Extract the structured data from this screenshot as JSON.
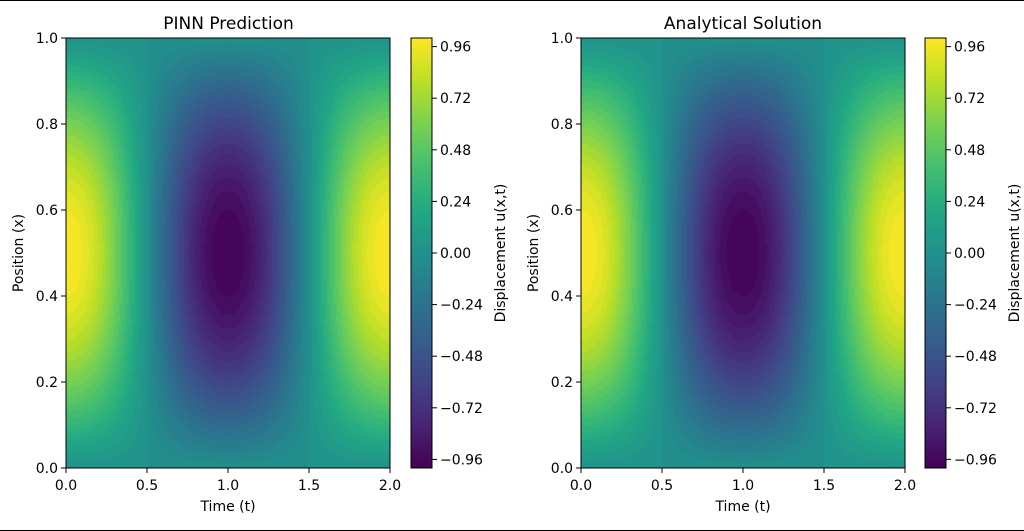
{
  "chart_data": [
    {
      "type": "heatmap",
      "title": "PINN Prediction",
      "xlabel": "Time (t)",
      "ylabel": "Position (x)",
      "xlim": [
        0.0,
        2.0
      ],
      "ylim": [
        0.0,
        1.0
      ],
      "xticks": [
        "0.0",
        "0.5",
        "1.0",
        "1.5",
        "2.0"
      ],
      "yticks": [
        "0.0",
        "0.2",
        "0.4",
        "0.6",
        "0.8",
        "1.0"
      ],
      "colormap": "viridis",
      "function": "u(x,t) = sin(pi*x) * cos(pi*t)",
      "value_range": [
        -1.0,
        1.0
      ],
      "colorbar": {
        "label": "Displacement u(x,t)",
        "ticks": [
          "−0.96",
          "−0.72",
          "−0.48",
          "−0.24",
          "0.00",
          "0.24",
          "0.48",
          "0.72",
          "0.96"
        ],
        "tick_values": [
          -0.96,
          -0.72,
          -0.48,
          -0.24,
          0.0,
          0.24,
          0.48,
          0.72,
          0.96
        ],
        "range": [
          -1.0,
          1.0
        ]
      }
    },
    {
      "type": "heatmap",
      "title": "Analytical Solution",
      "xlabel": "Time (t)",
      "ylabel": "Position (x)",
      "xlim": [
        0.0,
        2.0
      ],
      "ylim": [
        0.0,
        1.0
      ],
      "xticks": [
        "0.0",
        "0.5",
        "1.0",
        "1.5",
        "2.0"
      ],
      "yticks": [
        "0.0",
        "0.2",
        "0.4",
        "0.6",
        "0.8",
        "1.0"
      ],
      "colormap": "viridis",
      "function": "u(x,t) = sin(pi*x) * cos(pi*t)",
      "value_range": [
        -1.0,
        1.0
      ],
      "colorbar": {
        "label": "Displacement u(x,t)",
        "ticks": [
          "−0.96",
          "−0.72",
          "−0.48",
          "−0.24",
          "0.00",
          "0.24",
          "0.48",
          "0.72",
          "0.96"
        ],
        "tick_values": [
          -0.96,
          -0.72,
          -0.48,
          -0.24,
          0.0,
          0.24,
          0.48,
          0.72,
          0.96
        ],
        "range": [
          -1.0,
          1.0
        ]
      }
    }
  ]
}
